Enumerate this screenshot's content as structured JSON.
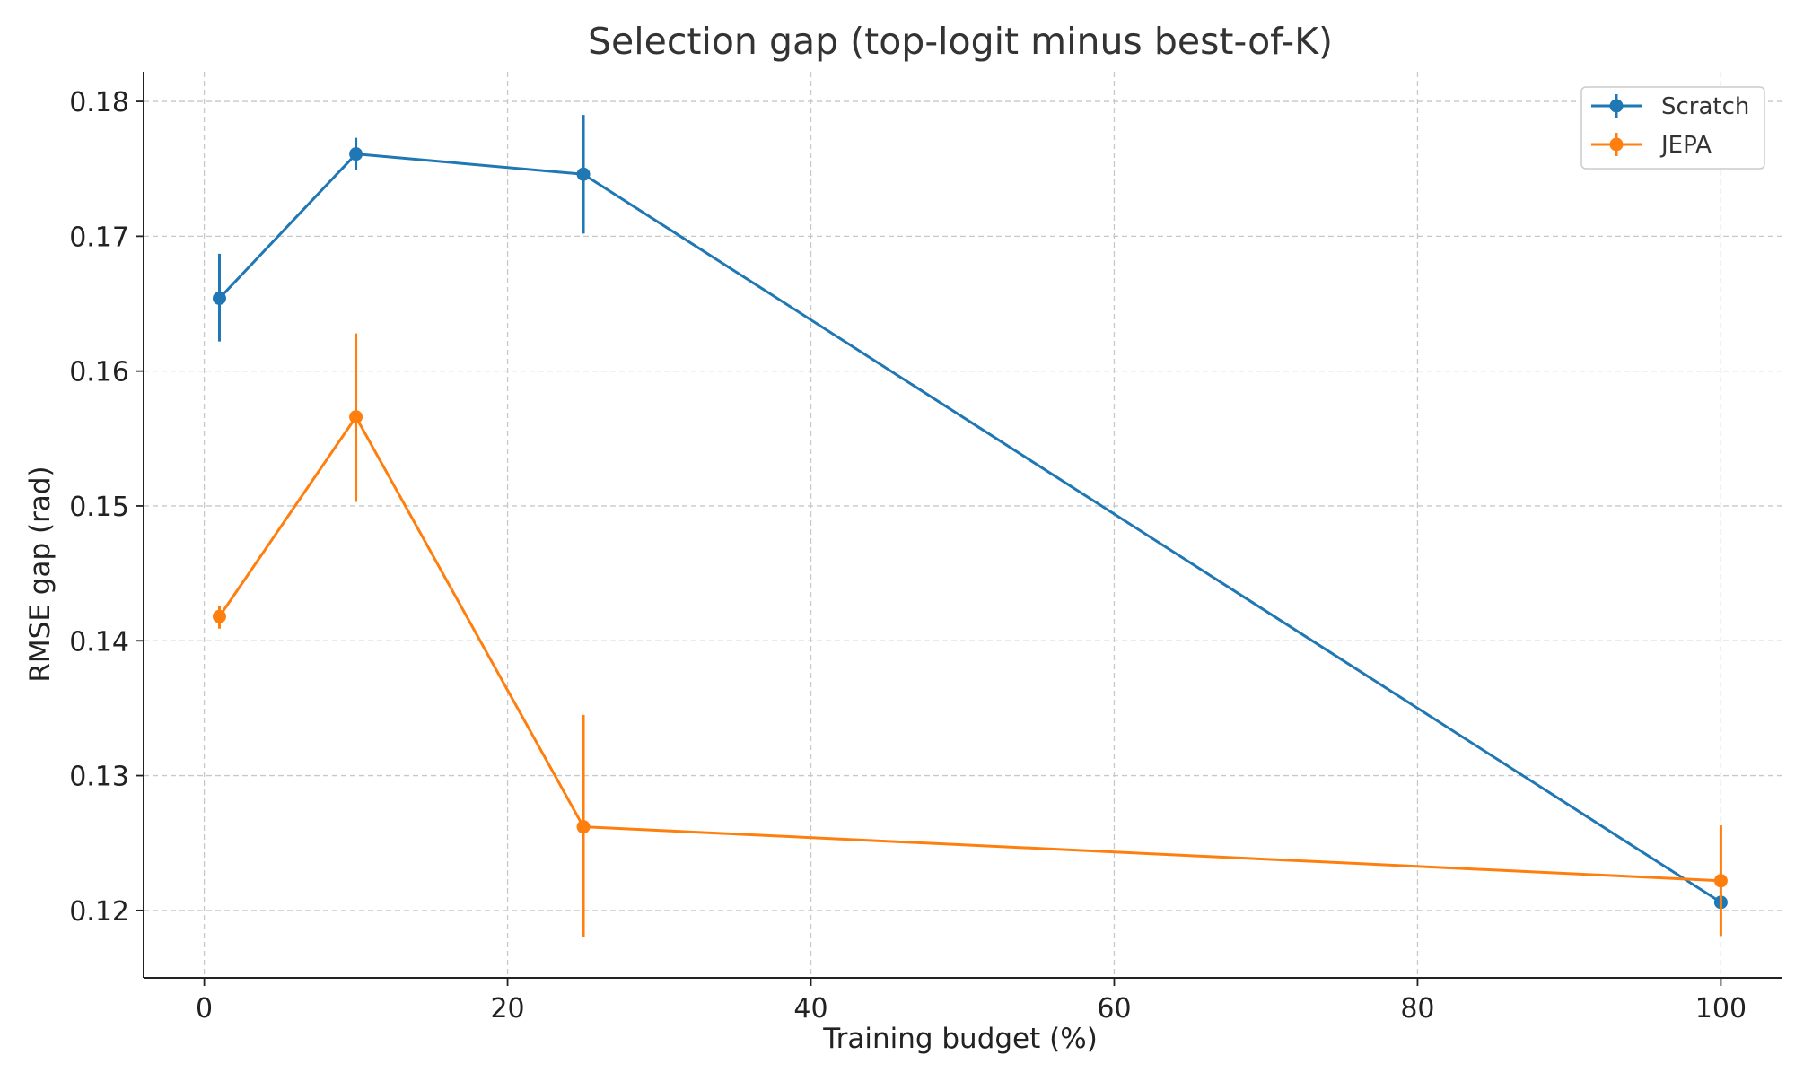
{
  "chart_data": {
    "type": "line",
    "title": "Selection gap (top-logit minus best-of-K)",
    "xlabel": "Training budget (%)",
    "ylabel": "RMSE gap (rad)",
    "xlim": [
      -4,
      104
    ],
    "ylim": [
      0.115,
      0.1822
    ],
    "x_ticks": [
      0,
      20,
      40,
      60,
      80,
      100
    ],
    "x_tick_labels": [
      "0",
      "20",
      "40",
      "60",
      "80",
      "100"
    ],
    "y_ticks": [
      0.12,
      0.13,
      0.14,
      0.15,
      0.16,
      0.17,
      0.18
    ],
    "y_tick_labels": [
      "0.12",
      "0.13",
      "0.14",
      "0.15",
      "0.16",
      "0.17",
      "0.18"
    ],
    "grid": true,
    "legend_position": "top-right",
    "series": [
      {
        "name": "Scratch",
        "color": "#1f77b4",
        "x": [
          1,
          10,
          25,
          100
        ],
        "y": [
          0.1654,
          0.1761,
          0.1746,
          0.1206
        ],
        "err_low": [
          0.1622,
          0.1749,
          0.1702,
          0.1206
        ],
        "err_high": [
          0.1687,
          0.1773,
          0.179,
          0.1206
        ]
      },
      {
        "name": "JEPA",
        "color": "#ff7f0e",
        "x": [
          1,
          10,
          25,
          100
        ],
        "y": [
          0.1418,
          0.1566,
          0.1262,
          0.1222
        ],
        "err_low": [
          0.1409,
          0.1503,
          0.118,
          0.1181
        ],
        "err_high": [
          0.1426,
          0.1628,
          0.1345,
          0.1263
        ]
      }
    ]
  }
}
